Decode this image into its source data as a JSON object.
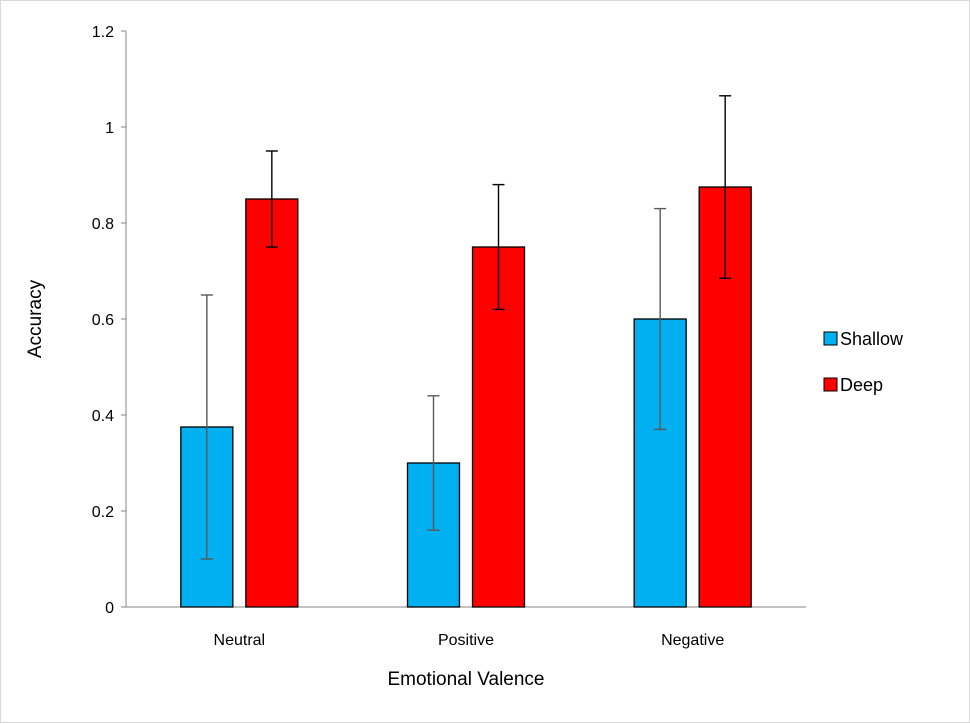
{
  "chart_data": {
    "type": "bar",
    "categories": [
      "Neutral",
      "Positive",
      "Negative"
    ],
    "series": [
      {
        "name": "Shallow",
        "color": "#00B0F0",
        "values": [
          0.375,
          0.3,
          0.6
        ],
        "error_low": [
          0.1,
          0.16,
          0.37
        ],
        "error_high": [
          0.65,
          0.44,
          0.83
        ]
      },
      {
        "name": "Deep",
        "color": "#FF0000",
        "values": [
          0.85,
          0.75,
          0.875
        ],
        "error_low": [
          0.75,
          0.62,
          0.685
        ],
        "error_high": [
          0.95,
          0.88,
          1.065
        ]
      }
    ],
    "xlabel": "Emotional Valence",
    "ylabel": "Accuracy",
    "ylim": [
      0,
      1.2
    ],
    "yticks": [
      "0",
      "0.2",
      "0.4",
      "0.6",
      "0.8",
      "1",
      "1.2"
    ],
    "grid": false,
    "legend_position": "right"
  }
}
